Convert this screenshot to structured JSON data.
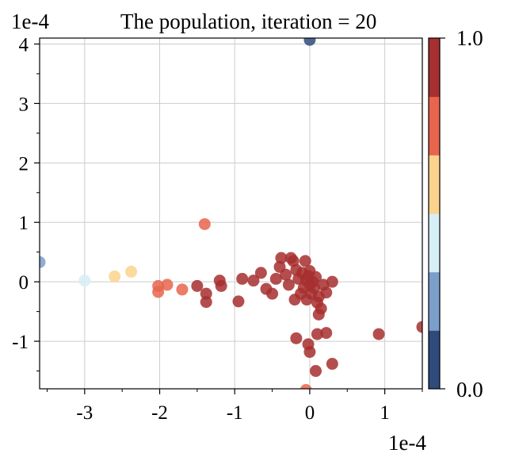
{
  "chart_data": {
    "type": "scatter",
    "title": "The population, iteration = 20",
    "x_offset_label": "1e-4",
    "y_offset_label": "1e-4",
    "xlim": [
      -3.6,
      1.5
    ],
    "ylim": [
      -1.8,
      4.1
    ],
    "x_ticks": [
      -3,
      -2,
      -1,
      0,
      1
    ],
    "y_ticks": [
      -1,
      0,
      1,
      2,
      3,
      4
    ],
    "x_tick_labels": [
      "-3",
      "-2",
      "-1",
      "0",
      "1"
    ],
    "y_tick_labels": [
      "-1",
      "0",
      "1",
      "2",
      "3",
      "4"
    ],
    "grid": true,
    "colorbar": {
      "min_label": "0.0",
      "max_label": "1.0",
      "colors": [
        "#2f4b7c",
        "#7b9fcb",
        "#d6eef5",
        "#fbd38d",
        "#e8654d",
        "#a72f2f"
      ]
    },
    "points": [
      {
        "x": 0.0,
        "y": 4.07,
        "v": 0.05
      },
      {
        "x": -3.6,
        "y": 0.33,
        "v": 0.2
      },
      {
        "x": -3.0,
        "y": 0.02,
        "v": 0.45
      },
      {
        "x": -2.6,
        "y": 0.09,
        "v": 0.6
      },
      {
        "x": -2.38,
        "y": 0.17,
        "v": 0.6
      },
      {
        "x": -2.02,
        "y": -0.07,
        "v": 0.75
      },
      {
        "x": -2.02,
        "y": -0.17,
        "v": 0.75
      },
      {
        "x": -1.9,
        "y": -0.05,
        "v": 0.75
      },
      {
        "x": -1.7,
        "y": -0.13,
        "v": 0.75
      },
      {
        "x": -1.4,
        "y": 0.97,
        "v": 0.75
      },
      {
        "x": -1.5,
        "y": -0.07,
        "v": 0.9
      },
      {
        "x": -1.38,
        "y": -0.2,
        "v": 0.9
      },
      {
        "x": -1.38,
        "y": -0.34,
        "v": 0.9
      },
      {
        "x": -1.2,
        "y": 0.02,
        "v": 0.9
      },
      {
        "x": -1.18,
        "y": -0.07,
        "v": 0.9
      },
      {
        "x": -0.95,
        "y": -0.33,
        "v": 0.9
      },
      {
        "x": -0.9,
        "y": 0.05,
        "v": 0.9
      },
      {
        "x": -0.75,
        "y": 0.02,
        "v": 0.9
      },
      {
        "x": -0.65,
        "y": 0.15,
        "v": 0.9
      },
      {
        "x": -0.58,
        "y": -0.12,
        "v": 0.9
      },
      {
        "x": -0.5,
        "y": -0.2,
        "v": 0.9
      },
      {
        "x": -0.45,
        "y": 0.05,
        "v": 0.9
      },
      {
        "x": -0.4,
        "y": 0.25,
        "v": 0.9
      },
      {
        "x": -0.38,
        "y": 0.4,
        "v": 0.9
      },
      {
        "x": -0.32,
        "y": 0.12,
        "v": 0.9
      },
      {
        "x": -0.28,
        "y": -0.05,
        "v": 0.9
      },
      {
        "x": -0.25,
        "y": 0.4,
        "v": 0.9
      },
      {
        "x": -0.22,
        "y": 0.35,
        "v": 0.9
      },
      {
        "x": -0.2,
        "y": -0.3,
        "v": 0.9
      },
      {
        "x": -0.18,
        "y": 0.2,
        "v": 0.9
      },
      {
        "x": -0.15,
        "y": 0.05,
        "v": 0.9
      },
      {
        "x": -0.12,
        "y": -0.2,
        "v": 0.9
      },
      {
        "x": -0.1,
        "y": 0.15,
        "v": 0.9
      },
      {
        "x": -0.08,
        "y": -0.1,
        "v": 0.9
      },
      {
        "x": -0.06,
        "y": 0.35,
        "v": 0.9
      },
      {
        "x": -0.05,
        "y": 0.03,
        "v": 0.9
      },
      {
        "x": -0.04,
        "y": -0.3,
        "v": 0.9
      },
      {
        "x": -0.02,
        "y": 0.1,
        "v": 0.9
      },
      {
        "x": 0.0,
        "y": -0.05,
        "v": 0.9
      },
      {
        "x": 0.0,
        "y": 0.18,
        "v": 0.9
      },
      {
        "x": 0.02,
        "y": -0.2,
        "v": 0.9
      },
      {
        "x": 0.04,
        "y": 0.0,
        "v": 0.9
      },
      {
        "x": 0.06,
        "y": -0.1,
        "v": 0.9
      },
      {
        "x": 0.08,
        "y": 0.08,
        "v": 0.9
      },
      {
        "x": 0.1,
        "y": -0.35,
        "v": 0.9
      },
      {
        "x": 0.12,
        "y": -0.25,
        "v": 0.9
      },
      {
        "x": 0.15,
        "y": -0.45,
        "v": 0.9
      },
      {
        "x": 0.12,
        "y": -0.55,
        "v": 0.9
      },
      {
        "x": 0.18,
        "y": -0.05,
        "v": 0.9
      },
      {
        "x": 0.22,
        "y": -0.18,
        "v": 0.9
      },
      {
        "x": 0.3,
        "y": 0.0,
        "v": 0.9
      },
      {
        "x": -0.18,
        "y": -0.95,
        "v": 0.9
      },
      {
        "x": -0.02,
        "y": -1.05,
        "v": 0.9
      },
      {
        "x": 0.0,
        "y": -1.18,
        "v": 0.9
      },
      {
        "x": 0.1,
        "y": -0.88,
        "v": 0.9
      },
      {
        "x": 0.22,
        "y": -0.86,
        "v": 0.9
      },
      {
        "x": 0.3,
        "y": -1.38,
        "v": 0.9
      },
      {
        "x": 0.08,
        "y": -1.5,
        "v": 0.9
      },
      {
        "x": -0.05,
        "y": -1.82,
        "v": 0.75
      },
      {
        "x": 0.92,
        "y": -0.88,
        "v": 0.9
      },
      {
        "x": 1.5,
        "y": -0.76,
        "v": 0.9
      }
    ]
  }
}
